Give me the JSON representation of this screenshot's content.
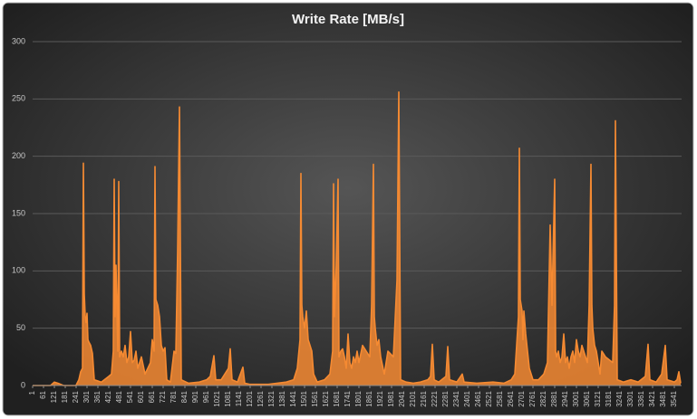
{
  "chart_data": {
    "type": "area",
    "title": "Write Rate [MB/s]",
    "color": "#f58a32",
    "grid": true,
    "ylim": [
      0,
      300
    ],
    "yticks": [
      0,
      50,
      100,
      150,
      200,
      250,
      300
    ],
    "xlim": [
      1,
      3581
    ],
    "xticks": [
      1,
      61,
      121,
      181,
      241,
      301,
      361,
      421,
      481,
      541,
      601,
      661,
      721,
      781,
      841,
      901,
      961,
      1021,
      1081,
      1141,
      1201,
      1261,
      1321,
      1381,
      1441,
      1501,
      1561,
      1621,
      1681,
      1741,
      1801,
      1861,
      1921,
      1981,
      2041,
      2101,
      2161,
      2221,
      2281,
      2341,
      2401,
      2461,
      2521,
      2581,
      2641,
      2701,
      2761,
      2821,
      2881,
      2941,
      3001,
      3061,
      3121,
      3181,
      3241,
      3301,
      3361,
      3421,
      3481,
      3541
    ],
    "x": [
      1,
      100,
      121,
      141,
      171,
      240,
      256,
      266,
      276,
      281,
      286,
      291,
      296,
      301,
      306,
      311,
      321,
      331,
      341,
      380,
      421,
      436,
      446,
      451,
      456,
      461,
      471,
      476,
      481,
      491,
      501,
      511,
      521,
      531,
      541,
      551,
      561,
      571,
      581,
      601,
      621,
      651,
      661,
      671,
      676,
      681,
      691,
      701,
      711,
      721,
      731,
      741,
      761,
      781,
      791,
      801,
      811,
      821,
      861,
      921,
      961,
      981,
      1001,
      1011,
      1041,
      1081,
      1091,
      1101,
      1131,
      1161,
      1171,
      1201,
      1301,
      1401,
      1441,
      1461,
      1476,
      1481,
      1486,
      1491,
      1501,
      1511,
      1521,
      1531,
      1541,
      1551,
      1571,
      1611,
      1641,
      1656,
      1661,
      1666,
      1676,
      1686,
      1691,
      1701,
      1711,
      1721,
      1731,
      1741,
      1751,
      1761,
      1771,
      1781,
      1791,
      1801,
      1821,
      1841,
      1861,
      1871,
      1881,
      1886,
      1891,
      1901,
      1911,
      1921,
      1941,
      1961,
      1991,
      2011,
      2021,
      2031,
      2061,
      2101,
      2141,
      2181,
      2196,
      2206,
      2216,
      2241,
      2281,
      2291,
      2301,
      2341,
      2371,
      2381,
      2451,
      2541,
      2601,
      2641,
      2661,
      2681,
      2686,
      2691,
      2701,
      2706,
      2711,
      2721,
      2731,
      2741,
      2761,
      2791,
      2821,
      2841,
      2856,
      2866,
      2881,
      2886,
      2891,
      2901,
      2911,
      2921,
      2931,
      2941,
      2951,
      2961,
      2971,
      2981,
      2991,
      3001,
      3011,
      3021,
      3031,
      3041,
      3061,
      3071,
      3081,
      3086,
      3091,
      3101,
      3111,
      3121,
      3131,
      3141,
      3161,
      3201,
      3211,
      3216,
      3226,
      3261,
      3301,
      3341,
      3381,
      3396,
      3406,
      3441,
      3471,
      3491,
      3501,
      3541,
      3556,
      3566,
      3576
    ],
    "values": [
      0,
      0,
      3,
      2,
      0,
      0,
      5,
      12,
      15,
      194,
      80,
      60,
      55,
      63,
      40,
      38,
      35,
      28,
      5,
      3,
      8,
      10,
      30,
      180,
      60,
      105,
      30,
      178,
      25,
      30,
      25,
      35,
      20,
      25,
      47,
      20,
      22,
      30,
      15,
      25,
      10,
      20,
      40,
      30,
      191,
      75,
      70,
      60,
      35,
      30,
      33,
      5,
      3,
      30,
      28,
      118,
      243,
      5,
      2,
      3,
      5,
      8,
      26,
      5,
      5,
      15,
      32,
      5,
      3,
      16,
      2,
      1,
      1,
      3,
      5,
      15,
      40,
      185,
      70,
      60,
      50,
      65,
      40,
      35,
      30,
      10,
      3,
      5,
      10,
      30,
      176,
      60,
      105,
      180,
      25,
      30,
      32,
      25,
      15,
      45,
      20,
      15,
      25,
      20,
      30,
      20,
      35,
      30,
      25,
      70,
      193,
      60,
      50,
      35,
      40,
      25,
      10,
      30,
      25,
      92,
      256,
      5,
      3,
      2,
      3,
      5,
      8,
      36,
      5,
      3,
      8,
      34,
      5,
      3,
      10,
      3,
      2,
      3,
      2,
      5,
      10,
      60,
      207,
      75,
      65,
      40,
      65,
      45,
      30,
      15,
      5,
      5,
      10,
      20,
      140,
      70,
      180,
      30,
      25,
      30,
      20,
      25,
      45,
      20,
      25,
      15,
      25,
      30,
      20,
      40,
      30,
      25,
      35,
      30,
      20,
      70,
      193,
      70,
      50,
      35,
      30,
      20,
      10,
      30,
      25,
      20,
      70,
      231,
      5,
      3,
      5,
      3,
      8,
      36,
      5,
      3,
      10,
      35,
      5,
      3,
      5,
      12,
      2
    ]
  }
}
